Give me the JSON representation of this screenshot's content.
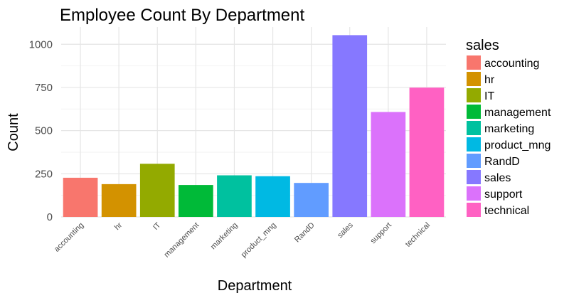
{
  "chart_data": {
    "type": "bar",
    "title": "Employee Count By Department",
    "xlabel": "Department",
    "ylabel": "Count",
    "categories": [
      "accounting",
      "hr",
      "IT",
      "management",
      "marketing",
      "product_mng",
      "RandD",
      "sales",
      "support",
      "technical"
    ],
    "values": [
      227,
      190,
      308,
      185,
      241,
      236,
      197,
      1053,
      608,
      749
    ],
    "colors": [
      "#F8766D",
      "#D39200",
      "#93AA00",
      "#00BA38",
      "#00C19F",
      "#00B9E3",
      "#619CFF",
      "#8678FF",
      "#DB72FB",
      "#FF61C3"
    ],
    "ylim": [
      0,
      1100
    ],
    "yticks": [
      0,
      250,
      500,
      750,
      1000
    ],
    "grid": true,
    "legend": {
      "title": "sales",
      "position": "right",
      "items": [
        "accounting",
        "hr",
        "IT",
        "management",
        "marketing",
        "product_mng",
        "RandD",
        "sales",
        "support",
        "technical"
      ]
    }
  }
}
